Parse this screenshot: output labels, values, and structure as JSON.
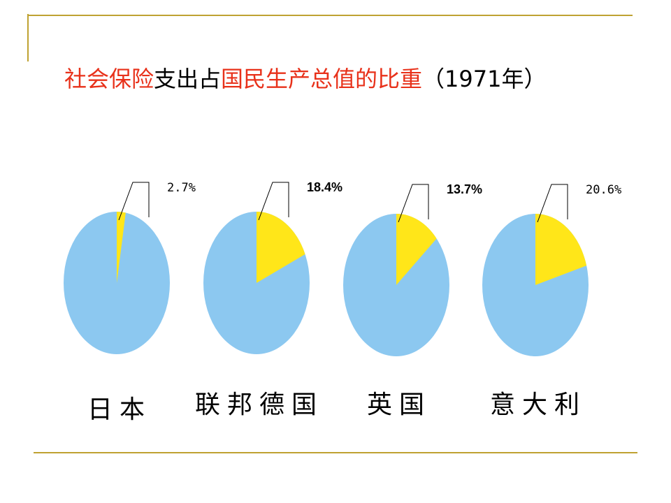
{
  "header": {
    "title": [
      "社会保险",
      "支出占",
      "国民生产总值的比重",
      "（1971年）"
    ],
    "title_colors": [
      "#e8311a",
      "#000000",
      "#e8311a",
      "#000000"
    ]
  },
  "chart_data": [
    {
      "type": "pie",
      "title": "日本",
      "values": [
        2.7
      ],
      "value_labels": [
        "2.7%"
      ],
      "color": "#ffe619",
      "rest_color": "#8cc8f0",
      "label_bold": false
    },
    {
      "type": "pie",
      "title": "联邦德国",
      "values": [
        18.4
      ],
      "value_labels": [
        "18.4%"
      ],
      "color": "#ffe619",
      "rest_color": "#8cc8f0",
      "label_bold": true
    },
    {
      "type": "pie",
      "title": "英国",
      "values": [
        13.7
      ],
      "value_labels": [
        "13.7%"
      ],
      "color": "#ffe619",
      "rest_color": "#8cc8f0",
      "label_bold": true
    },
    {
      "type": "pie",
      "title": "意大利",
      "values": [
        20.6
      ],
      "value_labels": [
        "20.6%"
      ],
      "color": "#ffe619",
      "rest_color": "#8cc8f0",
      "label_bold": false
    }
  ]
}
